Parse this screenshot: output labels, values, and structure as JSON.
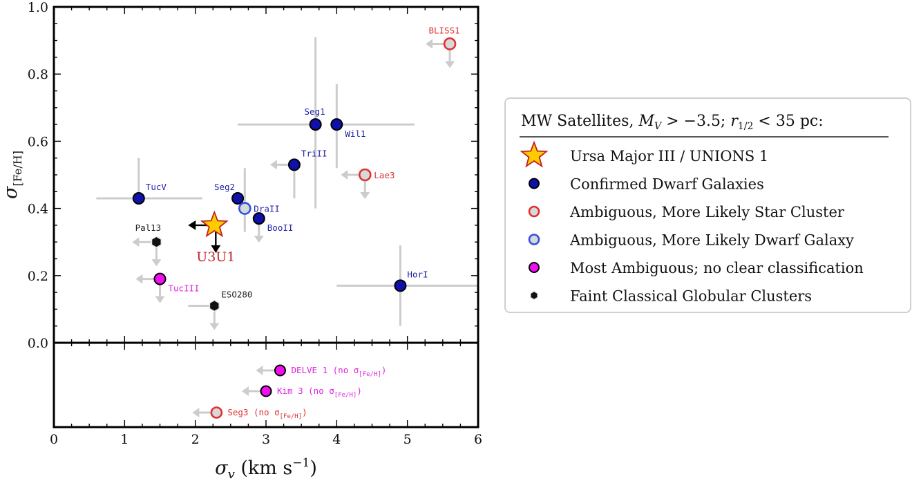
{
  "chart_data": {
    "type": "scatter",
    "xlabel_main": "σ",
    "xlabel_sub": "v",
    "xlabel_unit": " (km s",
    "xlabel_exp": "−1",
    "xlabel_close": ")",
    "ylabel_main": "σ",
    "ylabel_sub": "[Fe/H]",
    "xlim": [
      0,
      6
    ],
    "ylim": [
      0,
      1.0
    ],
    "x_ticks": [
      "0",
      "1",
      "2",
      "3",
      "4",
      "5",
      "6"
    ],
    "y_ticks": [
      "0.0",
      "0.2",
      "0.4",
      "0.6",
      "0.8",
      "1.0"
    ],
    "colors": {
      "confirmed": "#1010aa",
      "star_cluster": "#e03030",
      "dwarf": "#3050e0",
      "ambiguous": "#ee10ee",
      "globular": "#111111",
      "errorbar": "#cccccc",
      "u3u1_label": "#c0282c",
      "star_fill": "#ffcc00",
      "label_confirmed": "#2222aa",
      "label_ambiguous": "#dd22dd",
      "label_cluster": "#dd3333"
    },
    "points": [
      {
        "name": "TucV",
        "x": 1.2,
        "y": 0.43,
        "type": "confirmed",
        "xerr": [
          0.6,
          0.9
        ],
        "yerr": [
          0.0,
          0.12
        ],
        "label_pos": "ne"
      },
      {
        "name": "Seg2",
        "x": 2.6,
        "y": 0.43,
        "type": "confirmed",
        "xerr": [
          0.0,
          0.0
        ],
        "yerr": [
          0.0,
          0.0
        ],
        "label_pos": "nw"
      },
      {
        "name": "DraII",
        "x": 2.7,
        "y": 0.4,
        "type": "dwarf",
        "xerr": [
          0.0,
          0.0
        ],
        "yerr": [
          0.07,
          0.12
        ],
        "label_pos": "e"
      },
      {
        "name": "BooII",
        "x": 2.9,
        "y": 0.37,
        "type": "confirmed",
        "xerr": [
          0.0,
          0.0
        ],
        "yerr": [
          0.0,
          0.0
        ],
        "label_pos": "se",
        "xupper": false,
        "yupper": true
      },
      {
        "name": "Seg1",
        "x": 3.7,
        "y": 0.65,
        "type": "confirmed",
        "xerr": [
          1.1,
          0.0
        ],
        "yerr": [
          0.25,
          0.26
        ],
        "label_pos": "nw"
      },
      {
        "name": "Wil1",
        "x": 4.0,
        "y": 0.65,
        "type": "confirmed",
        "xerr": [
          0.0,
          1.1
        ],
        "yerr": [
          0.13,
          0.12
        ],
        "label_pos": "se"
      },
      {
        "name": "TriII",
        "x": 3.4,
        "y": 0.53,
        "type": "confirmed",
        "xerr": [
          0.0,
          0.0
        ],
        "yerr": [
          0.1,
          0.0
        ],
        "label_pos": "ne",
        "xupper": true
      },
      {
        "name": "Lae3",
        "x": 4.4,
        "y": 0.5,
        "type": "star_cluster",
        "label_pos": "e",
        "xupper": true,
        "yupper": true
      },
      {
        "name": "BLISS1",
        "x": 5.6,
        "y": 0.89,
        "type": "star_cluster",
        "label_pos": "n",
        "xupper": true,
        "yupper": true
      },
      {
        "name": "HorI",
        "x": 4.9,
        "y": 0.17,
        "type": "confirmed",
        "xerr": [
          0.9,
          1.1
        ],
        "yerr": [
          0.12,
          0.12
        ],
        "label_pos": "ne"
      },
      {
        "name": "Pal13",
        "x": 1.45,
        "y": 0.3,
        "type": "globular",
        "label_pos": "n",
        "xupper": true,
        "yupper": true
      },
      {
        "name": "TucIII",
        "x": 1.5,
        "y": 0.19,
        "type": "ambiguous",
        "label_pos": "se",
        "xupper": true,
        "yupper": true
      },
      {
        "name": "ESO280",
        "x": 2.27,
        "y": 0.11,
        "type": "globular",
        "xerr": [
          0.37,
          0.0
        ],
        "label_pos": "ne",
        "yupper": true
      }
    ],
    "bottom_points": [
      {
        "name": "DELVE 1 (no σ",
        "sub": "[Fe/H]",
        "close": ")",
        "x": 3.2,
        "row": 0,
        "type": "ambiguous"
      },
      {
        "name": "Kim 3 (no σ",
        "sub": "[Fe/H]",
        "close": ")",
        "x": 3.0,
        "row": 1,
        "type": "ambiguous"
      },
      {
        "name": "Seg3 (no σ",
        "sub": "[Fe/H]",
        "close": ")",
        "x": 2.3,
        "row": 2,
        "type": "star_cluster"
      }
    ],
    "u3u1": {
      "name": "U3U1",
      "x": 2.27,
      "y": 0.35
    },
    "legend": {
      "title_prefix": "MW Satellites, ",
      "title_mv": "M",
      "title_mv_sub": "V",
      "title_mid": " > −3.5; ",
      "title_r": "r",
      "title_r_sub": "1/2",
      "title_end": " < 35 pc:",
      "placement": "right",
      "entries": [
        {
          "label": "Ursa Major III / UNIONS 1",
          "marker": "star"
        },
        {
          "label": "Confirmed Dwarf Galaxies",
          "marker": "confirmed"
        },
        {
          "label": "Ambiguous, More Likely Star Cluster",
          "marker": "star_cluster"
        },
        {
          "label": "Ambiguous, More Likely Dwarf Galaxy",
          "marker": "dwarf"
        },
        {
          "label": "Most Ambiguous; no clear classification",
          "marker": "ambiguous"
        },
        {
          "label": "Faint Classical Globular Clusters",
          "marker": "globular"
        }
      ]
    }
  }
}
